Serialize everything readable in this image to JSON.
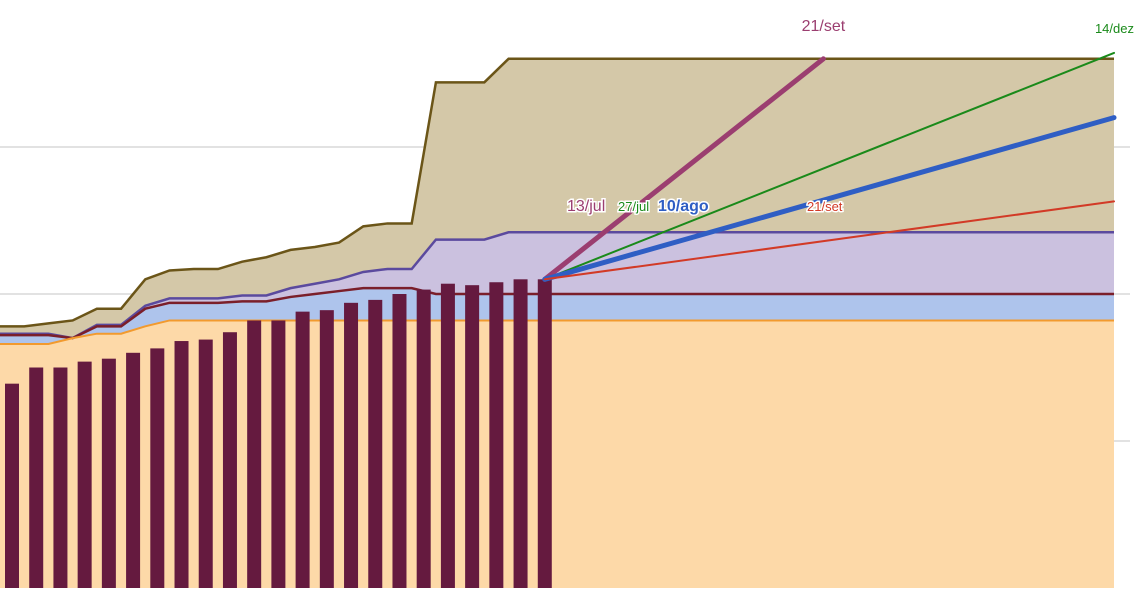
{
  "chart_data": {
    "type": "area",
    "title": "",
    "xlabel": "",
    "ylabel": "",
    "grid": true,
    "x_index_range": [
      0,
      46
    ],
    "ylim": [
      0,
      4
    ],
    "gridlines_y": [
      1,
      2,
      3
    ],
    "colors": {
      "olive_fill": "#d4c8a8",
      "olive_line": "#6b5518",
      "purple_fill": "#cbc1df",
      "purple_line": "#5b4a9e",
      "blue_fill": "#aec4ec",
      "maroon_line": "#7b1f2a",
      "orange_fill": "#fdd9a8",
      "orange_line": "#f29a2e",
      "bar": "#651a3f",
      "grid": "#d9d9d9",
      "proj_fast": "#9b3e70",
      "proj_green": "#1a8a1a",
      "proj_blue": "#2f5ec4",
      "proj_red": "#d23a26"
    },
    "stacked_series": [
      {
        "key": "olive",
        "values": [
          1.78,
          1.78,
          1.8,
          1.82,
          1.9,
          1.9,
          2.1,
          2.16,
          2.17,
          2.17,
          2.22,
          2.25,
          2.3,
          2.32,
          2.35,
          2.46,
          2.48,
          2.48,
          3.44,
          3.44,
          3.44,
          3.6,
          3.6,
          3.6,
          3.6,
          3.6,
          3.6,
          3.6,
          3.6,
          3.6,
          3.6,
          3.6,
          3.6,
          3.6,
          3.6,
          3.6,
          3.6,
          3.6,
          3.6,
          3.6,
          3.6,
          3.6,
          3.6,
          3.6,
          3.6,
          3.6,
          3.6
        ]
      },
      {
        "key": "purple",
        "values": [
          1.73,
          1.73,
          1.73,
          1.7,
          1.79,
          1.79,
          1.92,
          1.97,
          1.97,
          1.97,
          1.99,
          1.99,
          2.04,
          2.07,
          2.1,
          2.15,
          2.17,
          2.17,
          2.37,
          2.37,
          2.37,
          2.42,
          2.42,
          2.42,
          2.42,
          2.42,
          2.42,
          2.42,
          2.42,
          2.42,
          2.42,
          2.42,
          2.42,
          2.42,
          2.42,
          2.42,
          2.42,
          2.42,
          2.42,
          2.42,
          2.42,
          2.42,
          2.42,
          2.42,
          2.42,
          2.42,
          2.42
        ]
      },
      {
        "key": "maroon",
        "values": [
          1.72,
          1.72,
          1.72,
          1.7,
          1.78,
          1.78,
          1.9,
          1.94,
          1.94,
          1.94,
          1.95,
          1.95,
          1.98,
          2.0,
          2.02,
          2.04,
          2.04,
          2.04,
          2.0,
          2.0,
          2.0,
          2.0,
          2.0,
          2.0,
          2.0,
          2.0,
          2.0,
          2.0,
          2.0,
          2.0,
          2.0,
          2.0,
          2.0,
          2.0,
          2.0,
          2.0,
          2.0,
          2.0,
          2.0,
          2.0,
          2.0,
          2.0,
          2.0,
          2.0,
          2.0,
          2.0,
          2.0
        ]
      },
      {
        "key": "orange",
        "values": [
          1.66,
          1.66,
          1.66,
          1.7,
          1.73,
          1.73,
          1.78,
          1.82,
          1.82,
          1.82,
          1.82,
          1.82,
          1.82,
          1.82,
          1.82,
          1.82,
          1.82,
          1.82,
          1.82,
          1.82,
          1.82,
          1.82,
          1.82,
          1.82,
          1.82,
          1.82,
          1.82,
          1.82,
          1.82,
          1.82,
          1.82,
          1.82,
          1.82,
          1.82,
          1.82,
          1.82,
          1.82,
          1.82,
          1.82,
          1.82,
          1.82,
          1.82,
          1.82,
          1.82,
          1.82,
          1.82,
          1.82
        ]
      }
    ],
    "bars": [
      1.39,
      1.5,
      1.5,
      1.54,
      1.56,
      1.6,
      1.63,
      1.68,
      1.69,
      1.74,
      1.82,
      1.82,
      1.88,
      1.89,
      1.94,
      1.96,
      2.0,
      2.03,
      2.07,
      2.06,
      2.08,
      2.1,
      2.1
    ],
    "projections": [
      {
        "key": "proj_fast",
        "start": [
          22,
          2.1
        ],
        "end": [
          34,
          3.6
        ],
        "width": 5,
        "labels": [
          {
            "text": "21/set",
            "at": "end"
          },
          {
            "text": "13/jul",
            "at": "mid"
          }
        ]
      },
      {
        "key": "proj_green",
        "start": [
          22,
          2.1
        ],
        "end": [
          46,
          3.64
        ],
        "width": 2,
        "labels": [
          {
            "text": "14/dez",
            "at": "end"
          },
          {
            "text": "27/jul",
            "at": "mid"
          }
        ]
      },
      {
        "key": "proj_blue",
        "start": [
          22,
          2.1
        ],
        "end": [
          46,
          3.2
        ],
        "width": 5,
        "labels": [
          {
            "text": "10/ago",
            "at": "mid"
          }
        ]
      },
      {
        "key": "proj_red",
        "start": [
          22,
          2.1
        ],
        "end": [
          46,
          2.63
        ],
        "width": 2,
        "labels": [
          {
            "text": "21/set",
            "at": "mid"
          }
        ]
      }
    ],
    "annotations": [
      "21/set",
      "14/dez",
      "13/jul",
      "27/jul",
      "10/ago",
      "21/set"
    ]
  }
}
